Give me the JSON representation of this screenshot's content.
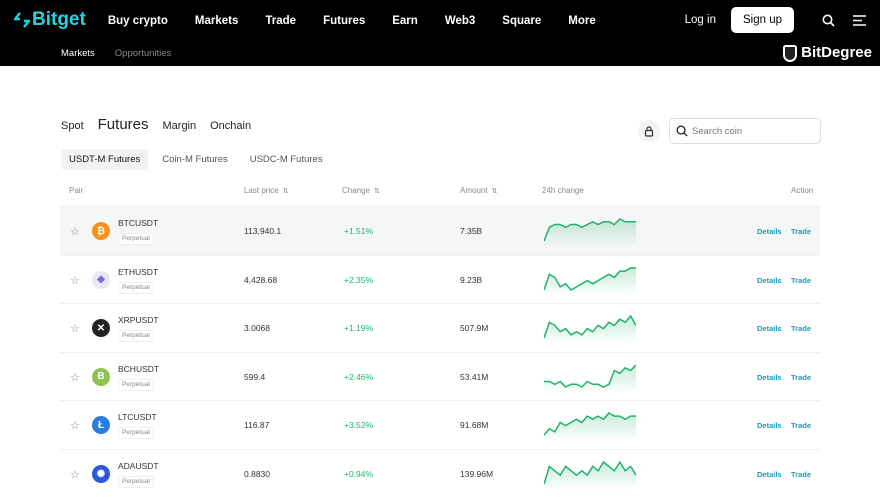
{
  "header": {
    "logo": "Bitget",
    "nav": [
      "Buy crypto",
      "Markets",
      "Trade",
      "Futures",
      "Earn",
      "Web3",
      "Square",
      "More"
    ],
    "login": "Log in",
    "signup": "Sign up"
  },
  "subnav": [
    "Markets",
    "Opportunities"
  ],
  "tabs": [
    "Spot",
    "Futures",
    "Margin",
    "Onchain"
  ],
  "subtabs": [
    "USDT-M Futures",
    "Coin-M Futures",
    "USDC-M Futures"
  ],
  "search": {
    "placeholder": "Search coin"
  },
  "columns": {
    "pair": "Pair",
    "price": "Last price",
    "change": "Change",
    "amount": "Amount",
    "chart": "24h change",
    "action": "Action"
  },
  "colors": {
    "accent": "#1ed5e0",
    "up": "#20b26c",
    "link": "#1a9bb8"
  },
  "rows": [
    {
      "symbol": "BTCUSDT",
      "type": "Perpetual",
      "price": "113,940.1",
      "change": "+1.51%",
      "amount": "7.35B",
      "icon": "bitcoin-icon",
      "color": "#f7931a",
      "glyph": "₿",
      "trend": [
        2,
        7,
        8,
        8,
        7,
        8,
        8,
        7,
        8,
        9,
        8,
        9,
        9,
        8,
        10,
        9,
        9,
        9
      ]
    },
    {
      "symbol": "ETHUSDT",
      "type": "Perpetual",
      "price": "4,428.68",
      "change": "+2.35%",
      "amount": "9.23B",
      "icon": "ethereum-icon",
      "color": "#e8e6f7",
      "glyph": "◆",
      "trend": [
        2,
        7,
        6,
        3,
        4,
        2,
        3,
        4,
        5,
        4,
        5,
        6,
        7,
        6,
        8,
        8,
        9,
        9
      ]
    },
    {
      "symbol": "XRPUSDT",
      "type": "Perpetual",
      "price": "3.0068",
      "change": "+1.19%",
      "amount": "507.9M",
      "icon": "xrp-icon",
      "color": "#222",
      "glyph": "✕",
      "trend": [
        2,
        7,
        6,
        4,
        5,
        3,
        4,
        3,
        5,
        4,
        6,
        5,
        7,
        6,
        8,
        7,
        9,
        6
      ]
    },
    {
      "symbol": "BCHUSDT",
      "type": "Perpetual",
      "price": "599.4",
      "change": "+2.46%",
      "amount": "53.41M",
      "icon": "bitcoin-cash-icon",
      "color": "#8dc351",
      "glyph": "B",
      "trend": [
        4,
        4,
        3,
        4,
        2,
        3,
        3,
        2,
        4,
        3,
        3,
        2,
        3,
        8,
        7,
        9,
        8,
        10
      ]
    },
    {
      "symbol": "LTCUSDT",
      "type": "Perpetual",
      "price": "116.87",
      "change": "+3.52%",
      "amount": "91.68M",
      "icon": "litecoin-icon",
      "color": "#2a7ce0",
      "glyph": "Ł",
      "trend": [
        2,
        4,
        3,
        6,
        5,
        6,
        7,
        6,
        8,
        7,
        8,
        7,
        9,
        8,
        8,
        7,
        8,
        8
      ]
    },
    {
      "symbol": "ADAUSDT",
      "type": "Perpetual",
      "price": "0.8830",
      "change": "+0.94%",
      "amount": "139.96M",
      "icon": "cardano-icon",
      "color": "#2a5ada",
      "glyph": "✺",
      "trend": [
        3,
        7,
        6,
        5,
        7,
        6,
        5,
        6,
        5,
        7,
        6,
        8,
        7,
        6,
        8,
        6,
        7,
        5
      ]
    }
  ],
  "actions": {
    "details": "Details",
    "trade": "Trade"
  },
  "watermark": "BitDegree"
}
